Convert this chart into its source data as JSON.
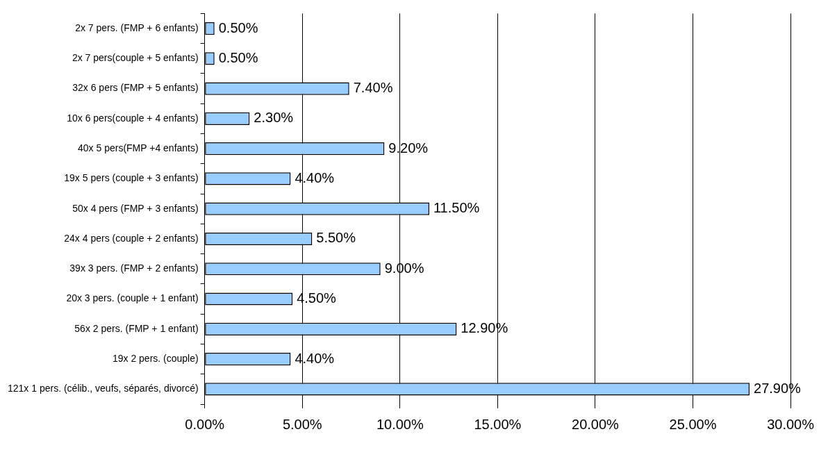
{
  "chart_data": {
    "type": "bar",
    "orientation": "horizontal",
    "categories": [
      "2x 7 pers. (FMP + 6 enfants)",
      "2x 7 pers(couple + 5 enfants)",
      "32x 6 pers (FMP + 5 enfants)",
      "10x 6 pers(couple + 4 enfants)",
      "40x 5 pers(FMP +4 enfants)",
      "19x 5 pers (couple + 3 enfants)",
      "50x 4 pers (FMP + 3 enfants)",
      "24x 4 pers (couple + 2 enfants)",
      "39x 3 pers. (FMP + 2 enfants)",
      "20x 3 pers. (couple + 1 enfant)",
      "56x 2 pers. (FMP + 1 enfant)",
      "19x 2 pers. (couple)",
      "121x 1 pers. (célib., veufs, séparés, divorcé)"
    ],
    "values": [
      0.5,
      0.5,
      7.4,
      2.3,
      9.2,
      4.4,
      11.5,
      5.5,
      9.0,
      4.5,
      12.9,
      4.4,
      27.9
    ],
    "value_labels": [
      "0.50%",
      "0.50%",
      "7.40%",
      "2.30%",
      "9.20%",
      "4.40%",
      "11.50%",
      "5.50%",
      "9.00%",
      "4.50%",
      "12.90%",
      "4.40%",
      "27.90%"
    ],
    "color": "#99ccff",
    "xlim": [
      0,
      30
    ],
    "xticks": [
      {
        "value": 0,
        "label": "0.00%"
      },
      {
        "value": 5,
        "label": "5.00%"
      },
      {
        "value": 10,
        "label": "10.00%"
      },
      {
        "value": 15,
        "label": "15.00%"
      },
      {
        "value": 20,
        "label": "20.00%"
      },
      {
        "value": 25,
        "label": "25.00%"
      },
      {
        "value": 30,
        "label": "30.00%"
      }
    ],
    "grid": "x",
    "legend": false
  }
}
